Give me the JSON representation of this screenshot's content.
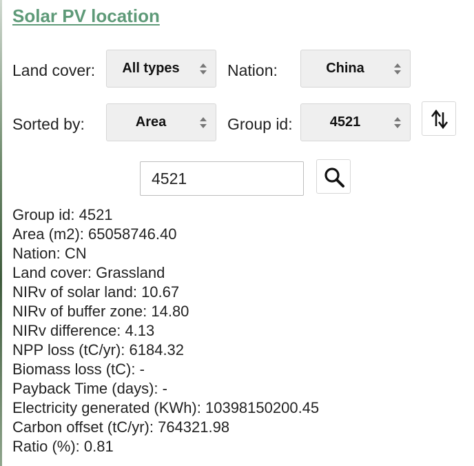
{
  "title": "Solar PV location",
  "filters": {
    "land_cover_label": "Land cover:",
    "land_cover_value": "All types",
    "nation_label": "Nation:",
    "nation_value": "China",
    "sorted_by_label": "Sorted by:",
    "sorted_by_value": "Area",
    "group_id_label": "Group id:",
    "group_id_value": "4521"
  },
  "search": {
    "value": "4521"
  },
  "details": [
    "Group id: 4521",
    "Area (m2): 65058746.40",
    "Nation: CN",
    "Land cover: Grassland",
    "NIRv of solar land: 10.67",
    "NIRv of buffer zone: 14.80",
    "NIRv difference: 4.13",
    "NPP loss (tC/yr): 6184.32",
    "Biomass loss (tC): -",
    "Payback Time (days): -",
    "Electricity generated (KWh): 10398150200.45",
    "Carbon offset (tC/yr): 764321.98",
    "Ratio (%): 0.81"
  ],
  "icons": {
    "sort": "sort-order-icon",
    "search": "search-icon",
    "select_arrows": "chevron-up-down-icon"
  }
}
